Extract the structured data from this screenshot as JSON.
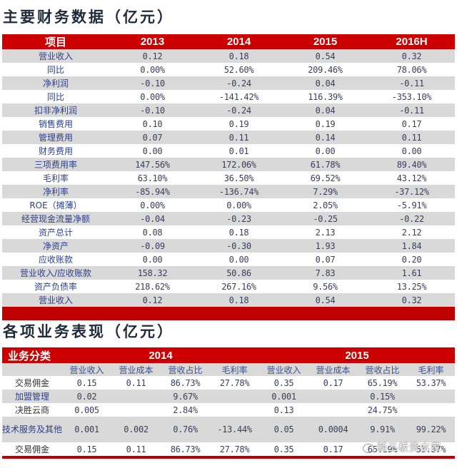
{
  "financials": {
    "title": "主要财务数据（亿元）",
    "headers": [
      "项目",
      "2013",
      "2014",
      "2015",
      "2016H"
    ],
    "rows": [
      [
        "营业收入",
        "0.12",
        "0.18",
        "0.54",
        "0.32"
      ],
      [
        "同比",
        "0.00%",
        "52.60%",
        "209.46%",
        "78.06%"
      ],
      [
        "净利润",
        "-0.10",
        "-0.24",
        "0.04",
        "-0.11"
      ],
      [
        "同比",
        "0.00%",
        "-141.42%",
        "116.39%",
        "-353.10%"
      ],
      [
        "扣非净利润",
        "-0.10",
        "-0.24",
        "0.04",
        "-0.11"
      ],
      [
        "销售费用",
        "0.10",
        "0.19",
        "0.19",
        "0.17"
      ],
      [
        "管理费用",
        "0.07",
        "0.11",
        "0.14",
        "0.11"
      ],
      [
        "财务费用",
        "0.00",
        "0.01",
        "0.00",
        "0.00"
      ],
      [
        "三项费用率",
        "147.56%",
        "172.06%",
        "61.78%",
        "89.40%"
      ],
      [
        "毛利率",
        "63.10%",
        "36.50%",
        "69.52%",
        "43.12%"
      ],
      [
        "净利率",
        "-85.94%",
        "-136.74%",
        "7.29%",
        "-37.12%"
      ],
      [
        "ROE（摊薄）",
        "0.00%",
        "0.00%",
        "2.05%",
        "-5.91%"
      ],
      [
        "经营现金流量净额",
        "-0.04",
        "-0.23",
        "-0.25",
        "-0.22"
      ],
      [
        "资产总计",
        "0.08",
        "0.18",
        "2.13",
        "2.12"
      ],
      [
        "净资产",
        "-0.09",
        "-0.30",
        "1.93",
        "1.84"
      ],
      [
        "应收账款",
        "0.00",
        "0.00",
        "0.07",
        "0.20"
      ],
      [
        "营业收入/应收账款",
        "158.32",
        "50.86",
        "7.83",
        "1.61"
      ],
      [
        "资产负债率",
        "218.62%",
        "267.16%",
        "9.56%",
        "13.25%"
      ],
      [
        "营业收入",
        "0.12",
        "0.18",
        "0.54",
        "0.32"
      ]
    ]
  },
  "business": {
    "title": "各项业务表现（亿元）",
    "category_header": "业务分类",
    "year_headers": [
      "2014",
      "2015"
    ],
    "sub_headers": [
      "营业收入",
      "营业成本",
      "营收占比",
      "毛利率",
      "营业收入",
      "营业成本",
      "营收占比",
      "毛利率"
    ],
    "rows": [
      [
        "交易佣金",
        "0.15",
        "0.11",
        "86.73%",
        "27.78%",
        "0.35",
        "0.17",
        "65.19%",
        "53.37%"
      ],
      [
        "加盟管理",
        "0.02",
        "",
        "9.67%",
        "",
        "0.001",
        "",
        "0.15%",
        ""
      ],
      [
        "决胜云商",
        "0.005",
        "",
        "2.84%",
        "",
        "0.13",
        "",
        "24.75%",
        ""
      ],
      [
        "技术服务及其他",
        "0.001",
        "0.002",
        "0.76%",
        "-13.44%",
        "0.05",
        "0.0004",
        "9.91%",
        "99.22%"
      ],
      [
        "交易佣金",
        "0.15",
        "0.11",
        "86.73%",
        "27.78%",
        "0.35",
        "0.17",
        "65.19%",
        "53.37%"
      ]
    ]
  },
  "watermark": {
    "icon": "wechat-icon",
    "text": "新三板资本家"
  },
  "colors": {
    "header_red": "#cc0000",
    "row_gray": "#d9d9d9",
    "text_blue": "#2e3f8a"
  }
}
